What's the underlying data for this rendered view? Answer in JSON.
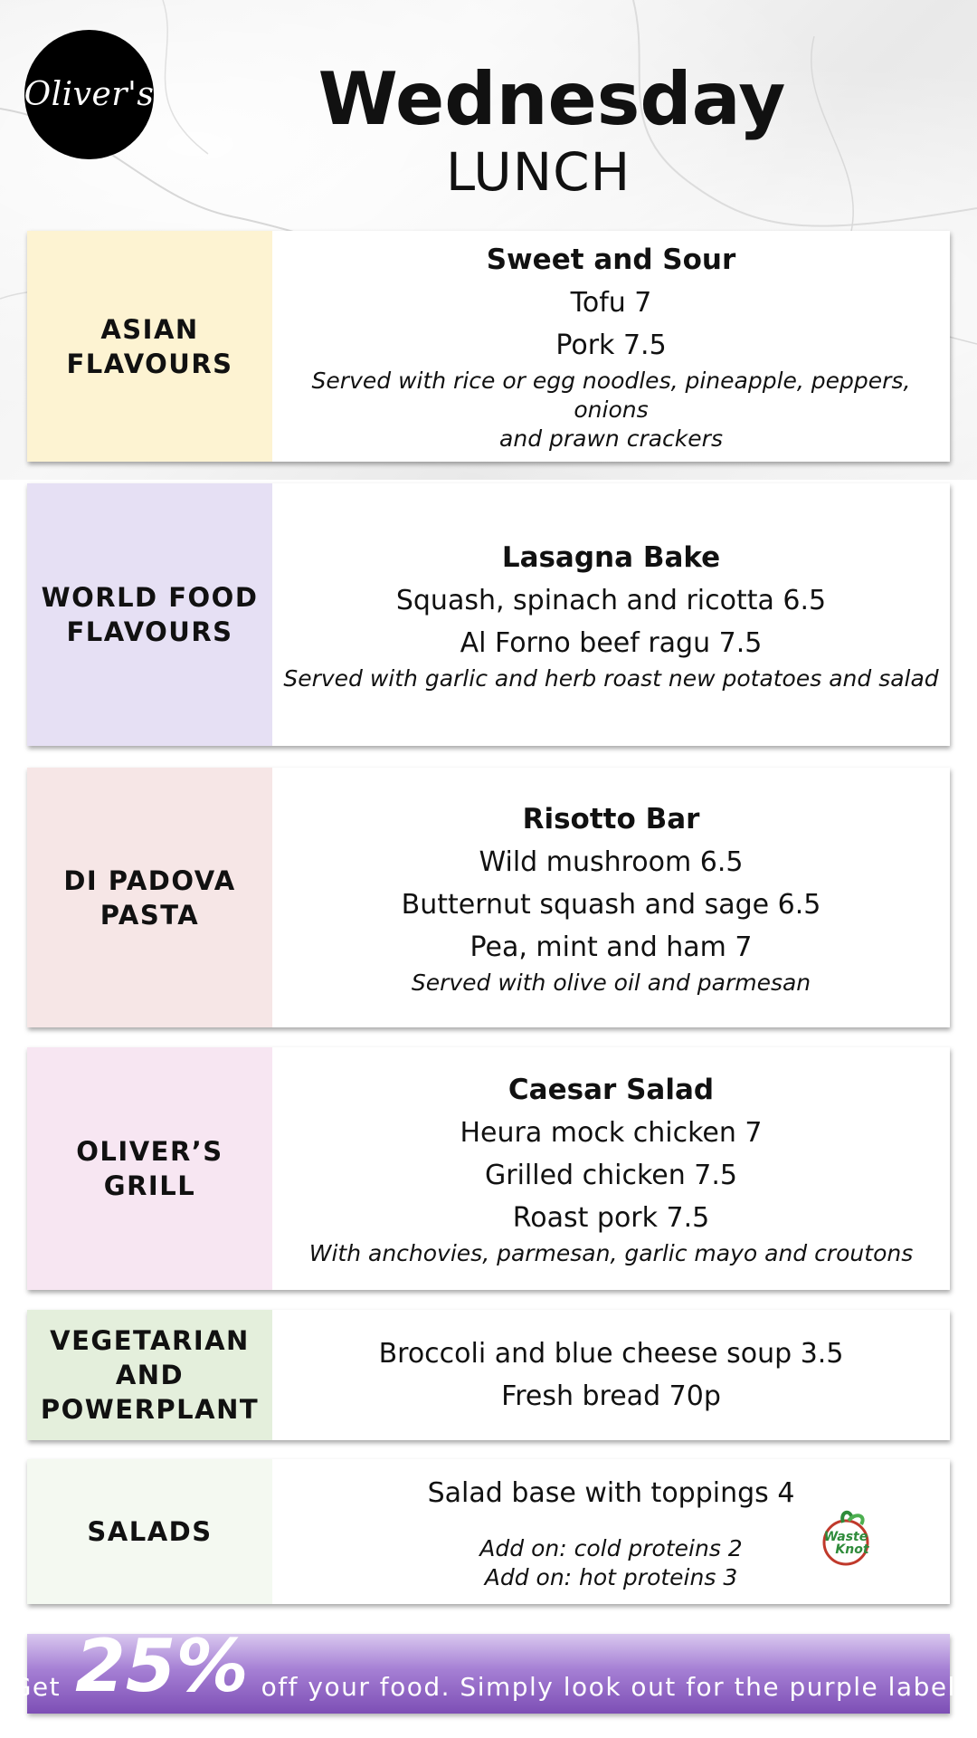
{
  "header": {
    "logo_text": "Oliver's",
    "title": "Wednesday",
    "subtitle": "LUNCH"
  },
  "sections": [
    {
      "category": "ASIAN FLAVOURS",
      "color": "#fdf3d2",
      "dish": "Sweet and Sour",
      "items": [
        "Tofu 7",
        "Pork 7.5"
      ],
      "notes": [
        "Served with rice or egg noodles, pineapple, peppers, onions",
        "and prawn crackers"
      ]
    },
    {
      "category": "WORLD FOOD FLAVOURS",
      "color": "#e6e0f4",
      "dish": "Lasagna Bake",
      "items": [
        "Squash, spinach and ricotta 6.5",
        "Al Forno beef ragu 7.5"
      ],
      "notes": [
        "Served with garlic and herb roast new potatoes and salad"
      ]
    },
    {
      "category": "DI PADOVA PASTA",
      "color": "#f6e6e6",
      "dish": "Risotto Bar",
      "items": [
        "Wild mushroom 6.5",
        "Butternut squash and sage 6.5",
        "Pea, mint and ham 7"
      ],
      "notes": [
        "Served with olive oil and parmesan"
      ]
    },
    {
      "category": "OLIVER’S GRILL",
      "color": "#f7e6f2",
      "dish": "Caesar Salad",
      "items": [
        "Heura mock chicken 7",
        "Grilled chicken 7.5",
        "Roast pork 7.5"
      ],
      "notes": [
        "With anchovies, parmesan, garlic mayo and croutons"
      ]
    },
    {
      "category": "VEGETARIAN AND POWERPLANT",
      "color": "#e4efdc",
      "items": [
        "Broccoli and blue cheese soup 3.5",
        "Fresh bread 70p"
      ]
    },
    {
      "category": "SALADS",
      "color": "#f4f9f1",
      "items": [
        "Salad base with toppings 4"
      ],
      "notes": [
        "Add on: cold proteins 2",
        "Add on: hot proteins 3"
      ],
      "badge_icon": "waste-knot-logo",
      "badge_text": "Waste Knot"
    }
  ],
  "promo": {
    "prefix": "Get",
    "percent": "25%",
    "suffix": "off your food. Simply look out for the purple label.",
    "color": "#8a5cc2"
  }
}
